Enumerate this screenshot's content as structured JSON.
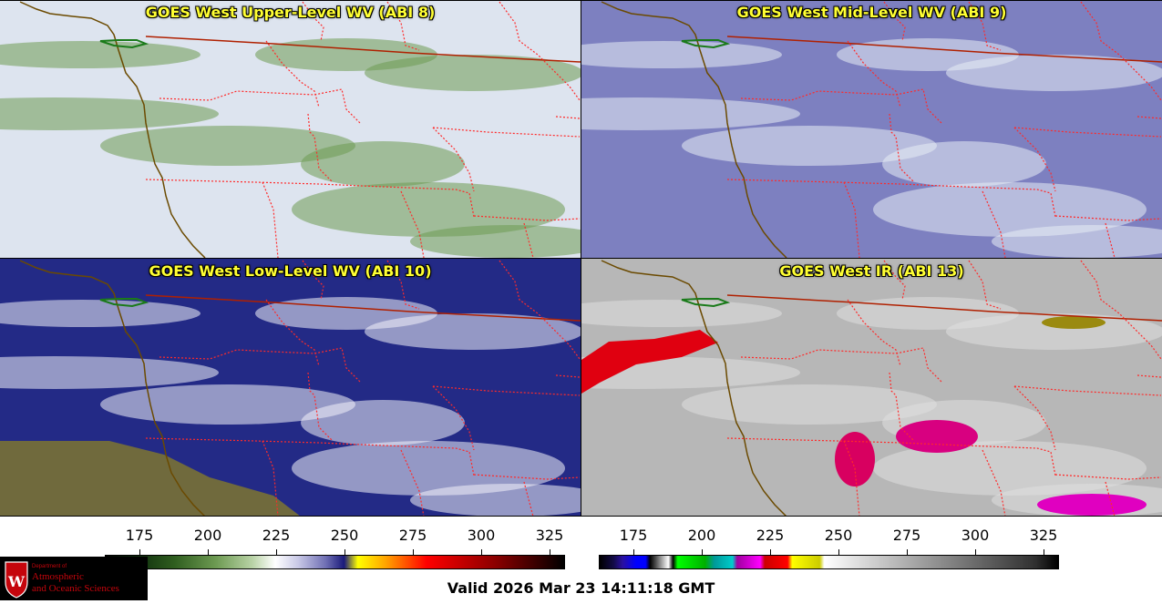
{
  "panels": [
    {
      "title": "GOES West Upper-Level WV (ABI 8)",
      "base": "#dde4ef",
      "accent": "#6d9a52"
    },
    {
      "title": "GOES West Mid-Level WV (ABI 9)",
      "base": "#7d80c0",
      "accent": "#e8ecf4"
    },
    {
      "title": "GOES West Low-Level WV (ABI 10)",
      "base": "#232a86",
      "accent": "#f3f3fa"
    },
    {
      "title": "GOES West IR (ABI 13)",
      "base": "#b7b7b7",
      "accent": "#e0e0e0"
    }
  ],
  "colorbars": {
    "wv_ticks": [
      "175",
      "200",
      "225",
      "250",
      "275",
      "300",
      "325"
    ],
    "ir_ticks": [
      "175",
      "200",
      "225",
      "250",
      "275",
      "300",
      "325"
    ]
  },
  "logo": {
    "line1": "Department of",
    "line2": "Atmospheric",
    "line3": "and Oceanic Sciences"
  },
  "valid_time": "Valid 2026 Mar 23 14:11:18 GMT",
  "colors": {
    "state_border": "#ff2a2a",
    "country_border": "#b02000",
    "coastline": "#6b4a00",
    "title_text": "#ffff33"
  }
}
